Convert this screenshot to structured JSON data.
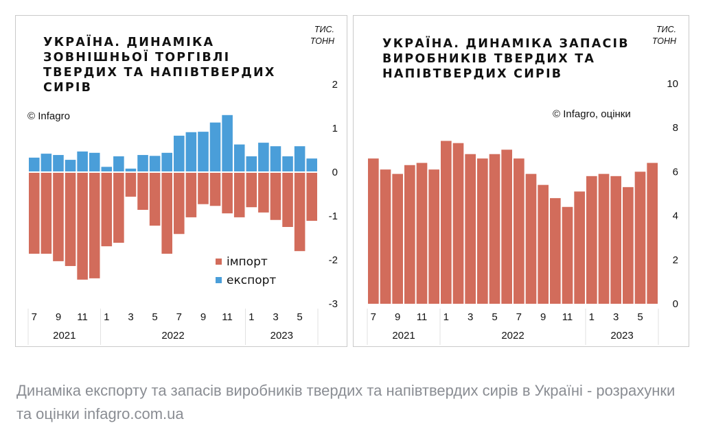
{
  "colors": {
    "import": "#d26c5b",
    "export": "#4a9ed9",
    "text": "#111111",
    "caption": "#8a8d93",
    "border": "#c9c9c9",
    "separator": "#e2e2e2"
  },
  "left_panel": {
    "title": "УКРАЇНА. ДИНАМІКА\nЗОВНІШНЬОЇ ТОРГІВЛІ\nТВЕРДИХ ТА НАПІВТВЕРДИХ\nСИРІВ",
    "unit": "ТИС.\nТОНН",
    "credit": "© Infagro"
  },
  "right_panel": {
    "title": "УКРАЇНА. ДИНАМІКА ЗАПАСІВ\nВИРОБНИКІВ ТВЕРДИХ ТА\nНАПІВТВЕРДИХ СИРІВ",
    "unit": "ТИС.\nТОНН",
    "credit": "© Infagro, оцінки"
  },
  "caption": "Динаміка експорту та запасів виробників твердих та напівтвердих сирів в Україні - розрахунки та оцінки infagro.com.ua",
  "chart_data": [
    {
      "type": "bar",
      "stacked": "diverging",
      "title": "УКРАЇНА. ДИНАМІКА ЗОВНІШНЬОЇ ТОРГІВЛІ ТВЕРДИХ ТА НАПІВТВЕРДИХ СИРІВ",
      "ylabel": "тис. тонн",
      "xlabel": "",
      "ylim": [
        -3,
        2
      ],
      "yticks": [
        2,
        1,
        0,
        -1,
        -2,
        -3
      ],
      "y_axis_side": "right",
      "grid": false,
      "legend": "bottom-right",
      "categories": [
        "2021-07",
        "2021-08",
        "2021-09",
        "2021-10",
        "2021-11",
        "2021-12",
        "2022-01",
        "2022-02",
        "2022-03",
        "2022-04",
        "2022-05",
        "2022-06",
        "2022-07",
        "2022-08",
        "2022-09",
        "2022-10",
        "2022-11",
        "2022-12",
        "2023-01",
        "2023-02",
        "2023-03",
        "2023-04",
        "2023-05",
        "2023-06"
      ],
      "x_tick_labels": [
        "7",
        "9",
        "11",
        "1",
        "3",
        "5",
        "7",
        "9",
        "11",
        "1",
        "3",
        "5"
      ],
      "x_tick_months_index": [
        0,
        2,
        4,
        6,
        8,
        10,
        12,
        14,
        16,
        18,
        20,
        22
      ],
      "year_groups": [
        {
          "label": "2021",
          "start": 0,
          "end": 5
        },
        {
          "label": "2022",
          "start": 6,
          "end": 17
        },
        {
          "label": "2023",
          "start": 18,
          "end": 23
        }
      ],
      "series": [
        {
          "name": "імпорт",
          "key": "import",
          "values": [
            -1.86,
            -1.86,
            -2.03,
            -2.14,
            -2.45,
            -2.42,
            -1.69,
            -1.61,
            -0.56,
            -0.86,
            -1.22,
            -1.86,
            -1.41,
            -1.03,
            -0.73,
            -0.77,
            -0.94,
            -1.03,
            -0.8,
            -0.92,
            -1.09,
            -1.25,
            -1.8,
            -1.11
          ]
        },
        {
          "name": "експорт",
          "key": "export",
          "values": [
            0.33,
            0.42,
            0.39,
            0.28,
            0.47,
            0.44,
            0.12,
            0.36,
            0.08,
            0.39,
            0.37,
            0.44,
            0.83,
            0.91,
            0.92,
            1.13,
            1.3,
            0.63,
            0.36,
            0.67,
            0.59,
            0.36,
            0.59,
            0.31
          ]
        }
      ]
    },
    {
      "type": "bar",
      "title": "УКРАЇНА. ДИНАМІКА ЗАПАСІВ ВИРОБНИКІВ ТВЕРДИХ ТА НАПІВТВЕРДИХ СИРІВ",
      "ylabel": "тис. тонн",
      "xlabel": "",
      "ylim": [
        0,
        10
      ],
      "yticks": [
        10,
        8,
        6,
        4,
        2,
        0
      ],
      "y_axis_side": "right",
      "grid": false,
      "categories": [
        "2021-07",
        "2021-08",
        "2021-09",
        "2021-10",
        "2021-11",
        "2021-12",
        "2022-01",
        "2022-02",
        "2022-03",
        "2022-04",
        "2022-05",
        "2022-06",
        "2022-07",
        "2022-08",
        "2022-09",
        "2022-10",
        "2022-11",
        "2022-12",
        "2023-01",
        "2023-02",
        "2023-03",
        "2023-04",
        "2023-05",
        "2023-06"
      ],
      "x_tick_labels": [
        "7",
        "9",
        "11",
        "1",
        "3",
        "5",
        "7",
        "9",
        "11",
        "1",
        "3",
        "5"
      ],
      "x_tick_months_index": [
        0,
        2,
        4,
        6,
        8,
        10,
        12,
        14,
        16,
        18,
        20,
        22
      ],
      "year_groups": [
        {
          "label": "2021",
          "start": 0,
          "end": 5
        },
        {
          "label": "2022",
          "start": 6,
          "end": 17
        },
        {
          "label": "2023",
          "start": 18,
          "end": 23
        }
      ],
      "series": [
        {
          "name": "запаси",
          "key": "stocks",
          "values": [
            6.6,
            6.1,
            5.9,
            6.3,
            6.4,
            6.1,
            7.4,
            7.3,
            6.8,
            6.6,
            6.8,
            7.0,
            6.6,
            5.9,
            5.4,
            4.8,
            4.4,
            5.1,
            5.8,
            5.9,
            5.8,
            5.3,
            6.0,
            6.4
          ]
        }
      ]
    }
  ]
}
